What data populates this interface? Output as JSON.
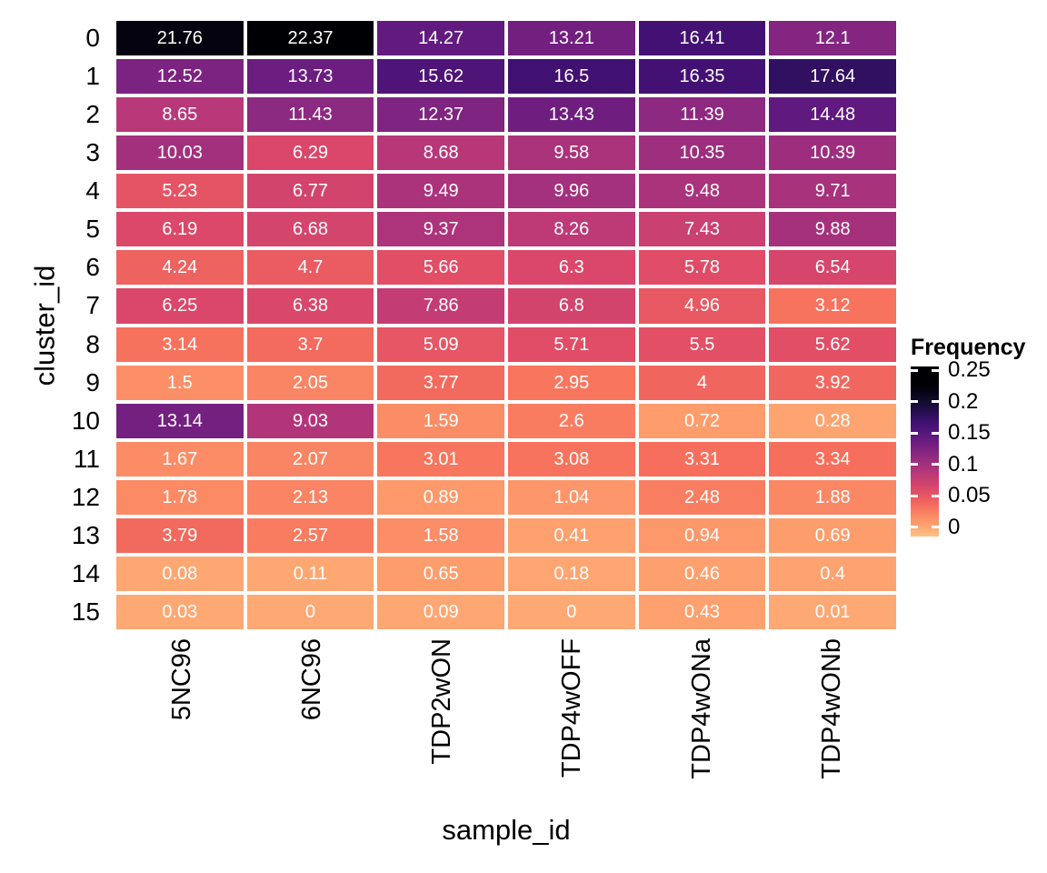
{
  "chart_data": {
    "type": "heatmap",
    "xlabel": "sample_id",
    "ylabel": "cluster_id",
    "columns": [
      "5NC96",
      "6NC96",
      "TDP2wON",
      "TDP4wOFF",
      "TDP4wONa",
      "TDP4wONb"
    ],
    "rows": [
      "0",
      "1",
      "2",
      "3",
      "4",
      "5",
      "6",
      "7",
      "8",
      "9",
      "10",
      "11",
      "12",
      "13",
      "14",
      "15"
    ],
    "values_percent": [
      [
        21.76,
        22.37,
        14.27,
        13.21,
        16.41,
        12.1
      ],
      [
        12.52,
        13.73,
        15.62,
        16.5,
        16.35,
        17.64
      ],
      [
        8.65,
        11.43,
        12.37,
        13.43,
        11.39,
        14.48
      ],
      [
        10.03,
        6.29,
        8.68,
        9.58,
        10.35,
        10.39
      ],
      [
        5.23,
        6.77,
        9.49,
        9.96,
        9.48,
        9.71
      ],
      [
        6.19,
        6.68,
        9.37,
        8.26,
        7.43,
        9.88
      ],
      [
        4.24,
        4.7,
        5.66,
        6.3,
        5.78,
        6.54
      ],
      [
        6.25,
        6.38,
        7.86,
        6.8,
        4.96,
        3.12
      ],
      [
        3.14,
        3.7,
        5.09,
        5.71,
        5.5,
        5.62
      ],
      [
        1.5,
        2.05,
        3.77,
        2.95,
        4,
        3.92
      ],
      [
        13.14,
        9.03,
        1.59,
        2.6,
        0.72,
        0.28
      ],
      [
        1.67,
        2.07,
        3.01,
        3.08,
        3.31,
        3.34
      ],
      [
        1.78,
        2.13,
        0.89,
        1.04,
        2.48,
        1.88
      ],
      [
        3.79,
        2.57,
        1.58,
        0.41,
        0.94,
        0.69
      ],
      [
        0.08,
        0.11,
        0.65,
        0.18,
        0.46,
        0.4
      ],
      [
        0.03,
        0,
        0.09,
        0,
        0.43,
        0.01
      ]
    ],
    "legend": {
      "title": "Frequency",
      "tick_labels": [
        "0.25",
        "0.2",
        "0.15",
        "0.1",
        "0.05",
        "0"
      ],
      "tick_values": [
        0.25,
        0.2,
        0.15,
        0.1,
        0.05,
        0
      ],
      "bar_value_top": 0.2558,
      "bar_value_bottom": -0.0145
    },
    "colormap": {
      "name": "magma-reversed",
      "stops": [
        "#000004",
        "#140E36",
        "#3B0F70",
        "#641A80",
        "#8C2981",
        "#B73779",
        "#DE4968",
        "#F7705C",
        "#FE9F6D",
        "#FECE91",
        "#FCFDBF"
      ],
      "t_at_value_zero": 0.82,
      "value_percent_at_black": 22.37
    },
    "cell_text_color": "#FFFFFF",
    "axis_text_color": "#000000",
    "grid_gap_color": "#FFFFFF"
  }
}
